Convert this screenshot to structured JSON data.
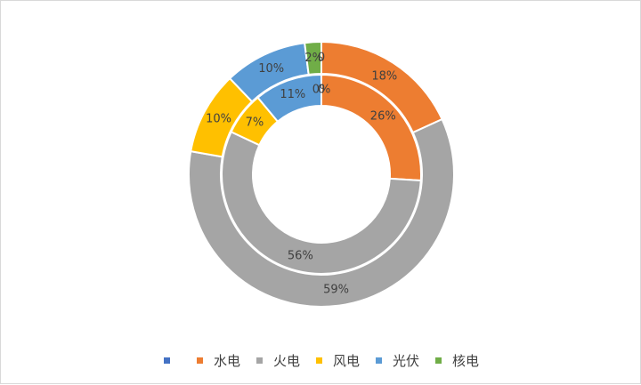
{
  "chart_data": {
    "type": "pie",
    "variant": "double-donut",
    "categories": [
      "",
      "水电",
      "火电",
      "风电",
      "光伏",
      "核电"
    ],
    "colors": [
      "#4472C4",
      "#ED7D31",
      "#A5A5A5",
      "#FFC000",
      "#5B9BD5",
      "#70AD47"
    ],
    "series": [
      {
        "ring": "outer",
        "values": [
          0,
          18,
          59,
          10,
          10,
          2
        ],
        "labels": [
          "0",
          "18%",
          "59%",
          "10%",
          "10%",
          "2%"
        ]
      },
      {
        "ring": "inner",
        "values": [
          0,
          26,
          56,
          7,
          11,
          0
        ],
        "labels": [
          "0",
          "26%",
          "56%",
          "7%",
          "11%",
          "0%"
        ]
      }
    ],
    "legend_position": "bottom"
  }
}
